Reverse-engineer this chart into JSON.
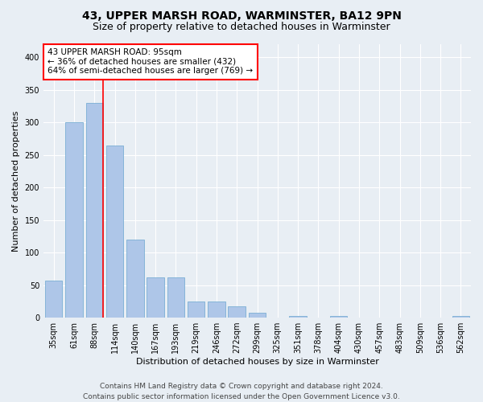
{
  "title": "43, UPPER MARSH ROAD, WARMINSTER, BA12 9PN",
  "subtitle": "Size of property relative to detached houses in Warminster",
  "xlabel": "Distribution of detached houses by size in Warminster",
  "ylabel": "Number of detached properties",
  "categories": [
    "35sqm",
    "61sqm",
    "88sqm",
    "114sqm",
    "140sqm",
    "167sqm",
    "193sqm",
    "219sqm",
    "246sqm",
    "272sqm",
    "299sqm",
    "325sqm",
    "351sqm",
    "378sqm",
    "404sqm",
    "430sqm",
    "457sqm",
    "483sqm",
    "509sqm",
    "536sqm",
    "562sqm"
  ],
  "bar_heights": [
    57,
    300,
    330,
    265,
    120,
    62,
    62,
    25,
    25,
    18,
    8,
    0,
    3,
    0,
    3,
    0,
    0,
    0,
    0,
    0,
    3
  ],
  "bar_color": "#aec6e8",
  "bar_edge_color": "#7aafd4",
  "annotation_box_text": "43 UPPER MARSH ROAD: 95sqm\n← 36% of detached houses are smaller (432)\n64% of semi-detached houses are larger (769) →",
  "annotation_box_color": "white",
  "annotation_box_edge_color": "red",
  "vline_color": "red",
  "vline_x": 2.42,
  "footer_line1": "Contains HM Land Registry data © Crown copyright and database right 2024.",
  "footer_line2": "Contains public sector information licensed under the Open Government Licence v3.0.",
  "ylim": [
    0,
    420
  ],
  "yticks": [
    0,
    50,
    100,
    150,
    200,
    250,
    300,
    350,
    400
  ],
  "background_color": "#e8eef4",
  "grid_color": "white",
  "title_fontsize": 10,
  "subtitle_fontsize": 9,
  "axis_label_fontsize": 8,
  "tick_fontsize": 7,
  "annot_fontsize": 7.5,
  "footer_fontsize": 6.5
}
